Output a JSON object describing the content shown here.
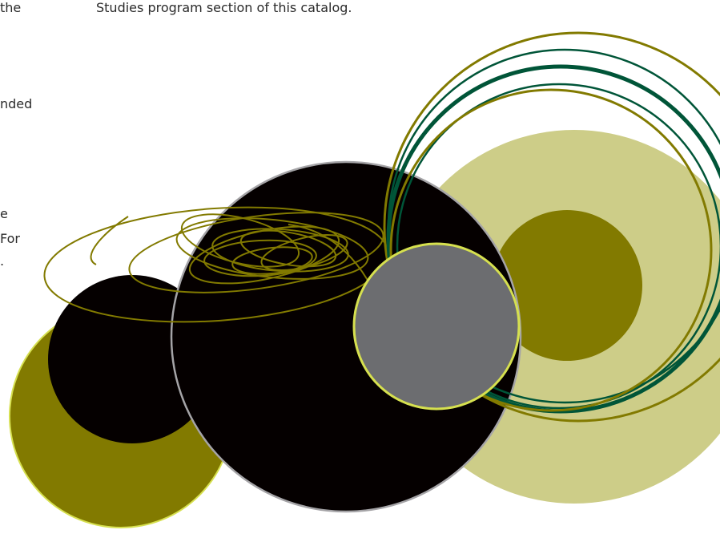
{
  "text": {
    "left_fragments": [
      "the",
      "nded",
      "e",
      "For",
      "."
    ],
    "top_line": "Studies program section of this catalog."
  },
  "colors": {
    "olive": "#827A00",
    "pale_olive": "#CDCD88",
    "black": "#050000",
    "gray": "#6C6D70",
    "dark_green": "#005538",
    "yellow_green": "#D6E04F",
    "gray_stroke": "#A5A4A7"
  }
}
